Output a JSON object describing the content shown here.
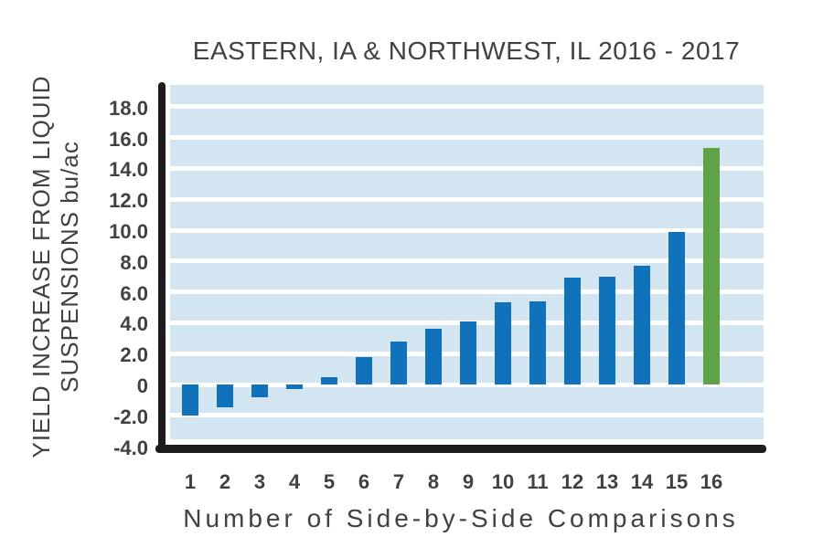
{
  "title": "EASTERN, IA & NORTHWEST, IL 2016 - 2017",
  "chart_data": {
    "type": "bar",
    "title": "EASTERN, IA & NORTHWEST, IL 2016 - 2017",
    "categories": [
      "1",
      "2",
      "3",
      "4",
      "5",
      "6",
      "7",
      "8",
      "9",
      "10",
      "11",
      "12",
      "13",
      "14",
      "15",
      "16"
    ],
    "values": [
      -2.0,
      -1.5,
      -0.8,
      -0.3,
      0.5,
      1.8,
      2.8,
      3.6,
      4.1,
      5.3,
      5.4,
      6.9,
      7.0,
      7.7,
      9.9,
      15.3
    ],
    "highlight_index": 15,
    "xlabel": "Number of Side-by-Side Comparisons",
    "ylabel": "YIELD INCREASE FROM LIQUID SUSPENSIONS bu/ac",
    "ylabel_lines": [
      "YIELD INCREASE FROM LIQUID",
      "SUSPENSIONS bu/ac"
    ],
    "y_ticks": [
      {
        "label": "18.0",
        "value": 18
      },
      {
        "label": "16.0",
        "value": 16
      },
      {
        "label": "14.0",
        "value": 14
      },
      {
        "label": "12.0",
        "value": 12
      },
      {
        "label": "10.0",
        "value": 10
      },
      {
        "label": "8.0",
        "value": 8
      },
      {
        "label": "6.0",
        "value": 6
      },
      {
        "label": "4.0",
        "value": 4
      },
      {
        "label": "2.0",
        "value": 2
      },
      {
        "label": "0",
        "value": 0
      },
      {
        "label": "-2.0",
        "value": -2
      },
      {
        "label": "-4.0",
        "value": -4
      },
      {
        "gridline_values": [
          18,
          16,
          14,
          12,
          10,
          8,
          6,
          4,
          2,
          0,
          -2
        ]
      }
    ],
    "ylim": [
      -4,
      19.4
    ],
    "grid": true,
    "legend": false,
    "colors": {
      "bar": "#0F72BA",
      "highlight_bar": "#5EA345",
      "plot_background": "#D3E5F1",
      "gridline": "#FFFFFF",
      "axis": "#1D1D1F",
      "text": "#414042"
    }
  }
}
